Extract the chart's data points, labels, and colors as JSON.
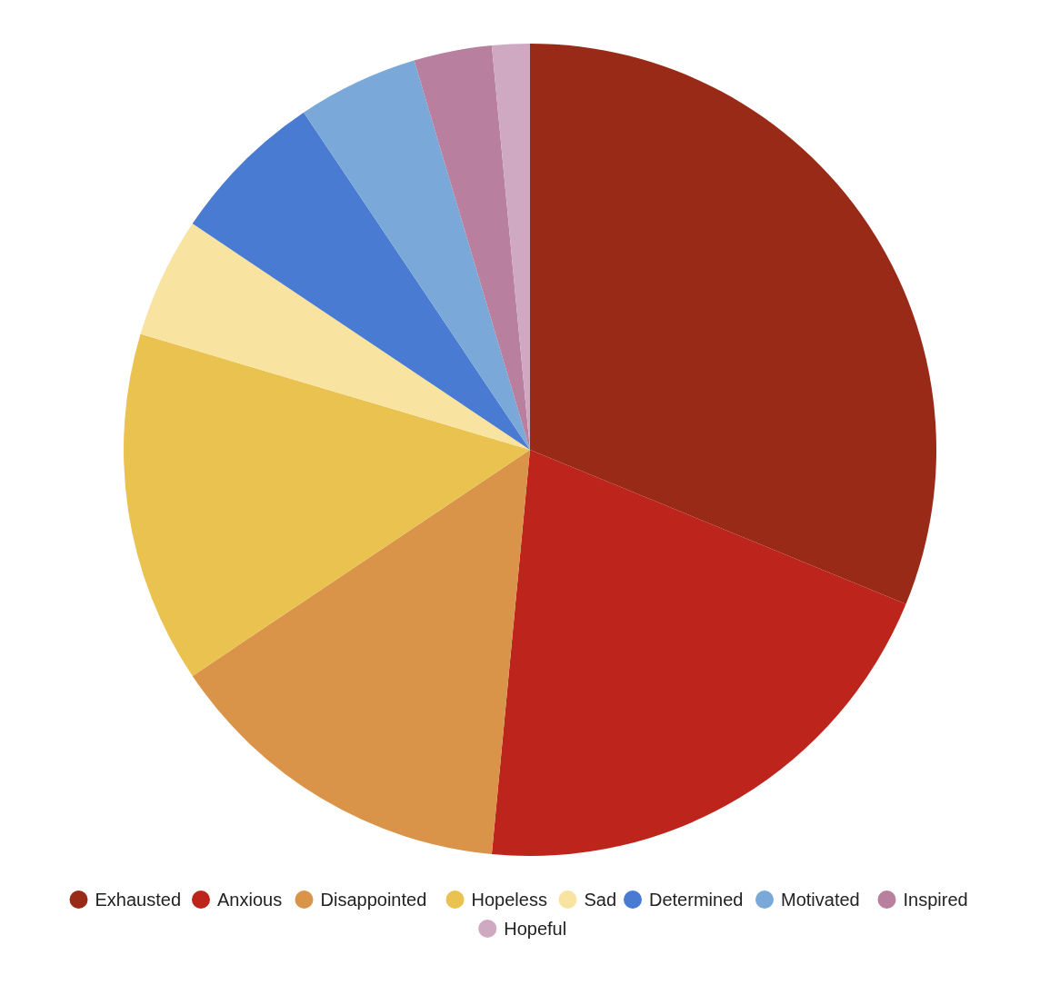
{
  "chart_data": {
    "type": "pie",
    "categories": [
      "Exhausted",
      "Anxious",
      "Disappointed",
      "Hopeless",
      "Sad",
      "Determined",
      "Motivated",
      "Inspired",
      "Hopeful"
    ],
    "values": [
      31.2,
      20.3,
      14.1,
      14.0,
      4.8,
      6.2,
      4.8,
      3.1,
      1.5
    ],
    "colors": [
      "#982a17",
      "#bd241b",
      "#d9944a",
      "#e9c24f",
      "#f9e3a1",
      "#4a7bd2",
      "#7aa8d8",
      "#b87f9e",
      "#cfa9c1"
    ],
    "legend": "bottom"
  }
}
